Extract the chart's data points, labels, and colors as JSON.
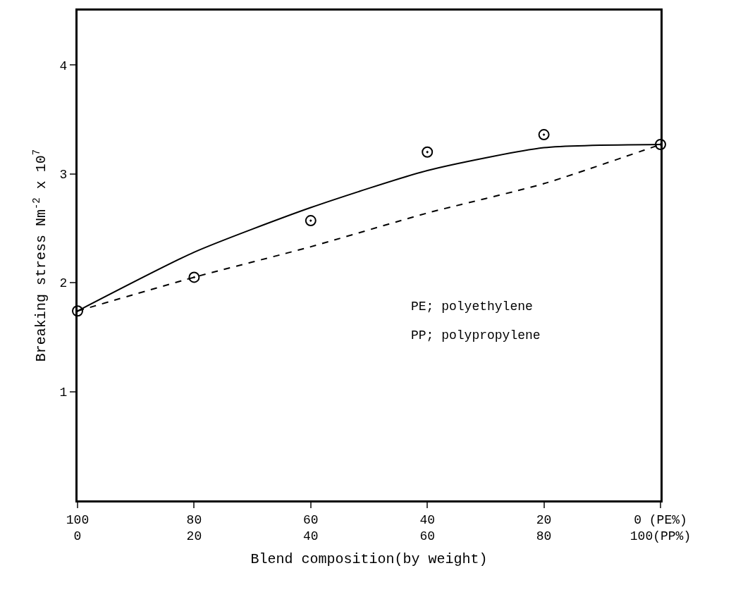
{
  "chart_data": {
    "type": "line",
    "xlabel": "Blend composition(by weight)",
    "ylabel": "Breaking stress Nm$^{-2}$ x 10$^{7}$",
    "categories": [
      "100\n0",
      "80\n20",
      "60\n40",
      "40\n60",
      "20\n80",
      "0 (PE%)\n100(PP%)"
    ],
    "ylim": [
      0,
      4.5
    ],
    "yticks": [
      1,
      2,
      3,
      4
    ],
    "annotations": [
      "PE; polyethylene",
      "PP; polypropylene"
    ],
    "series": [
      {
        "type": "scatter",
        "marker": "circle",
        "color": "#000000",
        "values": [
          1.74,
          2.05,
          2.57,
          3.2,
          3.36,
          3.27
        ]
      },
      {
        "line_style": "solid",
        "color": "#000000",
        "values": [
          1.74,
          2.28,
          2.69,
          3.03,
          3.24,
          3.27
        ]
      },
      {
        "line_style": "dashed",
        "color": "#000000",
        "values": [
          1.74,
          2.05,
          2.33,
          2.64,
          2.91,
          3.27
        ]
      }
    ]
  }
}
